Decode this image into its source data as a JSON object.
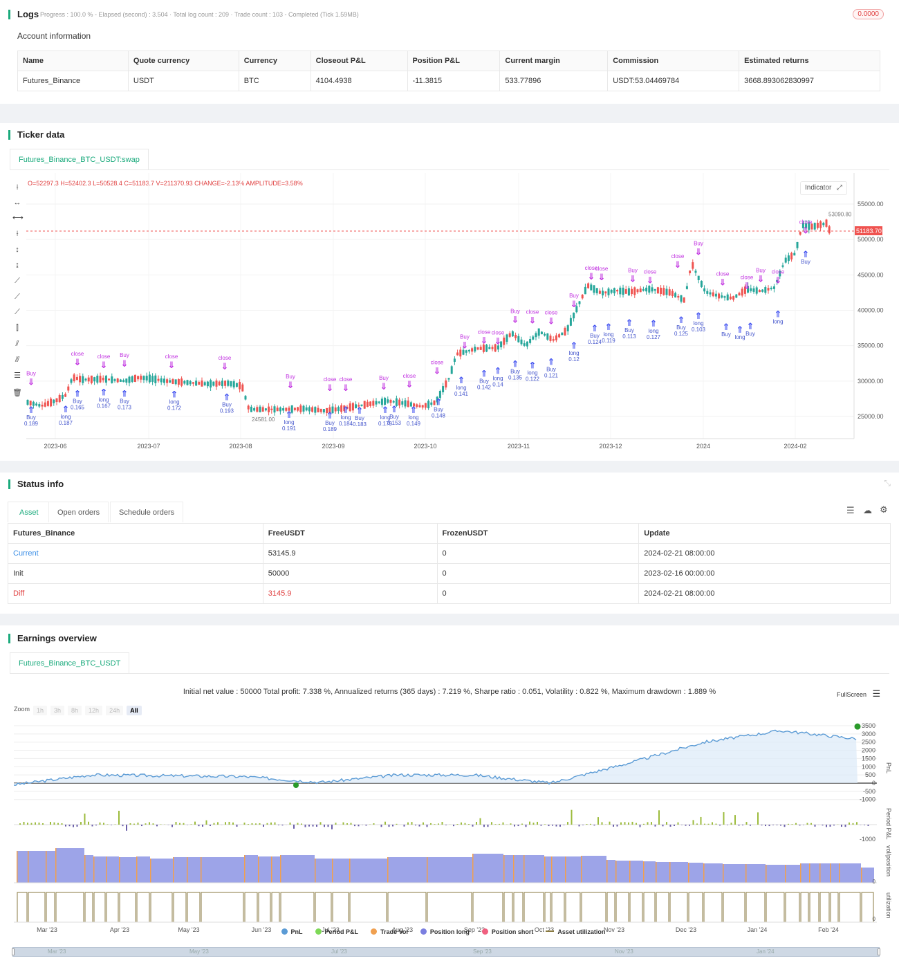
{
  "logs": {
    "title": "Logs",
    "summary": "Progress : 100.0 % - Elapsed (second) : 3.504 · Total log count : 209 · Trade count : 103 - Completed (Tick 1.59MB)",
    "badge": "0.0000"
  },
  "account": {
    "title": "Account information",
    "headers": [
      "Name",
      "Quote currency",
      "Currency",
      "Closeout P&L",
      "Position P&L",
      "Current margin",
      "Commission",
      "Estimated returns"
    ],
    "row": [
      "Futures_Binance",
      "USDT",
      "BTC",
      "4104.4938",
      "-11.3815",
      "533.77896",
      "USDT:53.04469784",
      "3668.893062830997"
    ]
  },
  "ticker": {
    "title": "Ticker data",
    "tab": "Futures_Binance_BTC_USDT:swap",
    "ohlc": "O=52297.3 H=52402.3 L=50528.4 C=51183.7 V=211370.93 CHANGE=-2.13% AMPLITUDE=3.58%",
    "indicator_btn": "Indicator",
    "price_ticks": [
      "55000.00",
      "50000.00",
      "45000.00",
      "40000.00",
      "35000.00",
      "30000.00",
      "25000.00"
    ],
    "last_price": "51183.70",
    "high_label": "53090.80",
    "low_label": "24581.00",
    "x_ticks": [
      "2023-06",
      "2023-07",
      "2023-08",
      "2023-09",
      "2023-10",
      "2023-11",
      "2023-12",
      "2024",
      "2024-02"
    ],
    "colors": {
      "up": "#26a69a",
      "down": "#ef5350",
      "buy_arrow": "#3b4cf0",
      "close_arrow": "#c030e0"
    },
    "marker_labels": {
      "buy": "Buy",
      "close": "close",
      "long": "long",
      "sizes": [
        "0.189",
        "0.187",
        "0.165",
        "0.167",
        "0.173",
        "0.172",
        "0.193",
        "0.191",
        "0.189",
        "0.184",
        "0.183",
        "0.179",
        "0.153",
        "0.149",
        "0.148",
        "0.141",
        "0.142",
        "0.14",
        "0.135",
        "0.122",
        "0.121",
        "0.12",
        "0.124",
        "0.119",
        "0.113",
        "0.127",
        "0.125",
        "0.103"
      ]
    }
  },
  "status": {
    "title": "Status info",
    "tabs": [
      "Asset",
      "Open orders",
      "Schedule orders"
    ],
    "headers": [
      "Futures_Binance",
      "FreeUSDT",
      "FrozenUSDT",
      "Update"
    ],
    "rows": [
      [
        "Current",
        "53145.9",
        "0",
        "2024-02-21 08:00:00"
      ],
      [
        "Init",
        "50000",
        "0",
        "2023-02-16 00:00:00"
      ],
      [
        "Diff",
        "3145.9",
        "0",
        "2024-02-21 08:00:00"
      ]
    ]
  },
  "earnings": {
    "title": "Earnings overview",
    "tab": "Futures_Binance_BTC_USDT",
    "summary": "Initial net value : 50000 Total profit: 7.338 %, Annualized returns (365 days) : 7.219 %, Sharpe ratio : 0.051, Volatility : 0.822 %, Maximum drawdown : 1.889 %",
    "fullscreen": "FullScreen",
    "zoom_label": "Zoom",
    "zoom_options": [
      "1h",
      "3h",
      "8h",
      "12h",
      "24h",
      "All"
    ],
    "pnl_ticks": [
      "3500",
      "3000",
      "2500",
      "2000",
      "1500",
      "1000",
      "500",
      "0",
      "-500",
      "-1000"
    ],
    "period_tick": "-1000",
    "pane_labels": [
      "PnL",
      "Period P&L",
      "vol/position",
      "utilization"
    ],
    "zero_labels": [
      "0",
      "0"
    ],
    "x_ticks": [
      "Mar '23",
      "Apr '23",
      "May '23",
      "Jun '23",
      "Jul '23",
      "Aug '23",
      "Sep '23",
      "Oct '23",
      "Nov '23",
      "Dec '23",
      "Jan '24",
      "Feb '24"
    ],
    "nav_ticks": [
      "Mar '23",
      "May '23",
      "Jul '23",
      "Sep '23",
      "Nov '23",
      "Jan '24"
    ],
    "legend": [
      {
        "label": "PnL",
        "color": "#5b9bd5"
      },
      {
        "label": "Period P&L",
        "color": "#7ed957"
      },
      {
        "label": "Trade Vol",
        "color": "#f0a050"
      },
      {
        "label": "Position long",
        "color": "#7b7fe0"
      },
      {
        "label": "Position short",
        "color": "#f06080"
      },
      {
        "label": "Asset utilization",
        "color": "#8a7a40"
      }
    ]
  },
  "chart_data": {
    "type": "line",
    "title": "",
    "x": [
      "Mar '23",
      "Apr '23",
      "May '23",
      "Jun '23",
      "Jul '23",
      "Aug '23",
      "Sep '23",
      "Oct '23",
      "Nov '23",
      "Dec '23",
      "Jan '24",
      "Feb '24"
    ],
    "series": [
      {
        "name": "PnL",
        "values": [
          -100,
          500,
          450,
          400,
          50,
          500,
          500,
          0,
          1200,
          2500,
          3200,
          2700
        ]
      }
    ],
    "ylim": [
      -1000,
      3500
    ],
    "grid": true,
    "legend": "bottom"
  }
}
